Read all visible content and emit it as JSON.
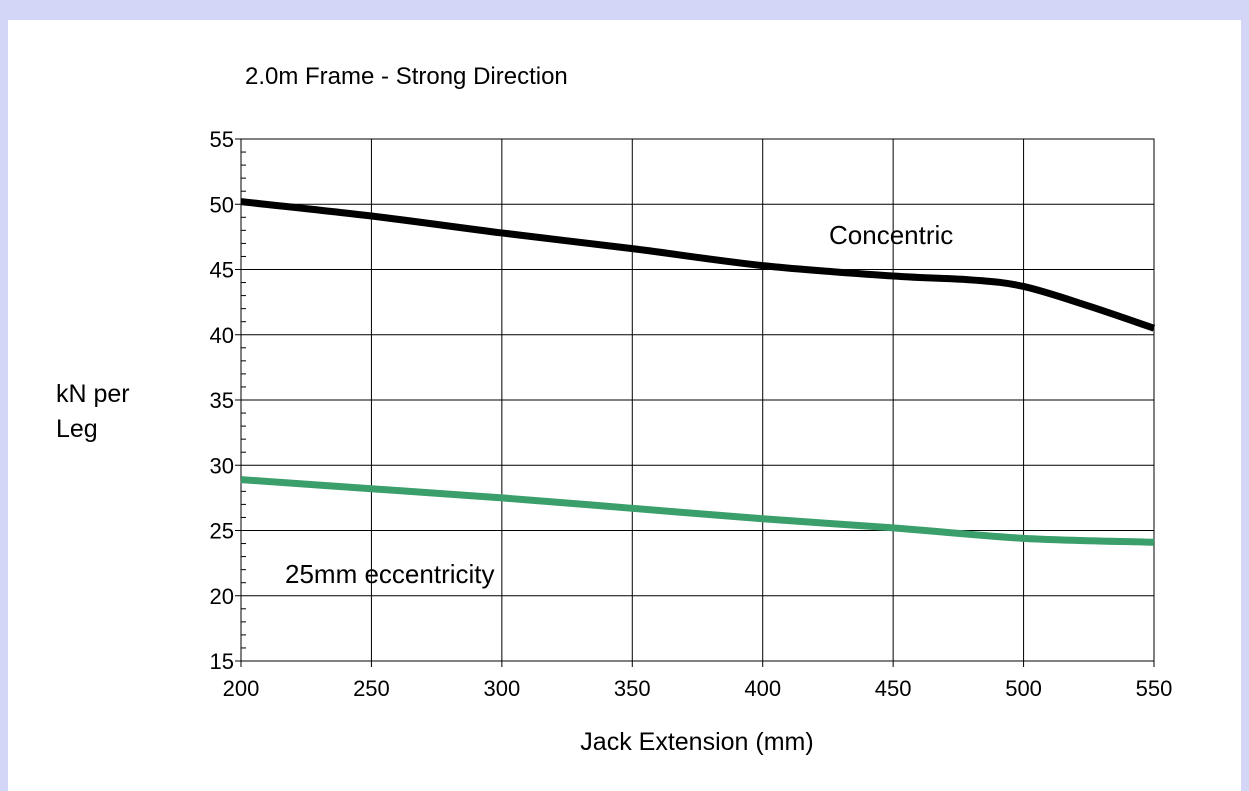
{
  "colors": {
    "background_outer": "#d4d6f8",
    "plot_background": "#ffffff",
    "grid": "#000000"
  },
  "chart_data": {
    "type": "line",
    "title": "2.0m Frame - Strong Direction",
    "xlabel": "Jack Extension (mm)",
    "ylabel_lines": [
      "kN per",
      "Leg"
    ],
    "xlim": [
      200,
      550
    ],
    "ylim": [
      15,
      55
    ],
    "xticks": [
      200,
      250,
      300,
      350,
      400,
      450,
      500,
      550
    ],
    "yticks": [
      15,
      20,
      25,
      30,
      35,
      40,
      45,
      50,
      55
    ],
    "grid": true,
    "legend": "none",
    "series": [
      {
        "name": "Concentric",
        "color": "#000000",
        "x": [
          200,
          250,
          300,
          350,
          400,
          450,
          480,
          500,
          525,
          550
        ],
        "y": [
          50.2,
          49.1,
          47.8,
          46.6,
          45.3,
          44.5,
          44.2,
          43.7,
          42.2,
          40.5
        ]
      },
      {
        "name": "25mm eccentricity",
        "color": "#3a9f6b",
        "x": [
          200,
          250,
          300,
          350,
          400,
          450,
          500,
          550
        ],
        "y": [
          28.9,
          28.2,
          27.5,
          26.7,
          25.9,
          25.2,
          24.4,
          24.1
        ]
      }
    ]
  }
}
